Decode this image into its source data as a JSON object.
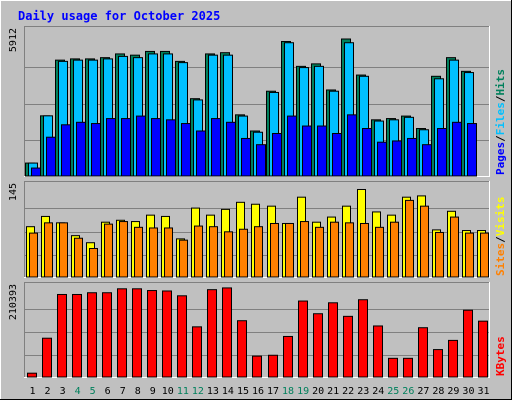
{
  "title": "Daily usage for October 2025",
  "colors": {
    "hits": "#00805c",
    "files": "#00c0ff",
    "pages": "#0000ff",
    "sites": "#ff8000",
    "visits": "#ffff00",
    "kbytes": "#ff0000",
    "background": "#c0c0c0",
    "plot": "#c0c0c0",
    "title": "#0000ff",
    "weekend_day": "#00805c"
  },
  "chart_data": [
    {
      "type": "bar",
      "panel": "hits-files-pages",
      "ymax_label": "5912",
      "ylim": [
        0,
        5912
      ],
      "legend": [
        "Pages",
        "/",
        "Files",
        "/",
        "Hits"
      ],
      "categories": [
        "1",
        "2",
        "3",
        "4",
        "5",
        "6",
        "7",
        "8",
        "9",
        "10",
        "11",
        "12",
        "13",
        "14",
        "15",
        "16",
        "17",
        "18",
        "19",
        "20",
        "21",
        "22",
        "23",
        "24",
        "25",
        "26",
        "27",
        "28",
        "29",
        "30",
        "31"
      ],
      "series": [
        {
          "name": "Hits",
          "values": [
            560,
            2460,
            4700,
            4750,
            4750,
            4800,
            4950,
            4900,
            5050,
            5050,
            4650,
            3150,
            4950,
            5000,
            2500,
            1850,
            3450,
            5450,
            4450,
            4550,
            3500,
            5550,
            4100,
            2300,
            2350,
            2450,
            1950,
            4050,
            4800,
            4250,
            0
          ]
        },
        {
          "name": "Files",
          "values": [
            560,
            2460,
            4650,
            4700,
            4700,
            4750,
            4850,
            4800,
            4950,
            4950,
            4600,
            3100,
            4900,
            4900,
            2450,
            1800,
            3400,
            5400,
            4400,
            4450,
            3450,
            5400,
            4050,
            2250,
            2300,
            2400,
            1900,
            3950,
            4700,
            4200,
            0
          ]
        },
        {
          "name": "Pages",
          "values": [
            360,
            1600,
            2100,
            2200,
            2150,
            2350,
            2350,
            2450,
            2350,
            2300,
            2150,
            1850,
            2350,
            2200,
            1550,
            1300,
            1750,
            2450,
            2050,
            2050,
            1750,
            2500,
            1950,
            1400,
            1450,
            1550,
            1300,
            1950,
            2200,
            2150,
            0
          ]
        }
      ]
    },
    {
      "type": "bar",
      "panel": "sites-visits",
      "ymax_label": "145",
      "ylim": [
        0,
        145
      ],
      "legend": [
        "Sites",
        "/",
        "Visits"
      ],
      "categories": [
        "1",
        "2",
        "3",
        "4",
        "5",
        "6",
        "7",
        "8",
        "9",
        "10",
        "11",
        "12",
        "13",
        "14",
        "15",
        "16",
        "17",
        "18",
        "19",
        "20",
        "21",
        "22",
        "23",
        "24",
        "25",
        "26",
        "27",
        "28",
        "29",
        "30",
        "31"
      ],
      "series": [
        {
          "name": "Visits",
          "values": [
            80,
            96,
            86,
            66,
            55,
            87,
            90,
            88,
            98,
            96,
            61,
            109,
            98,
            107,
            118,
            115,
            112,
            85,
            126,
            87,
            95,
            112,
            138,
            103,
            98,
            126,
            128,
            75,
            104,
            74,
            74
          ]
        },
        {
          "name": "Sites",
          "values": [
            70,
            86,
            86,
            62,
            46,
            84,
            88,
            79,
            78,
            78,
            59,
            81,
            80,
            72,
            76,
            80,
            85,
            85,
            88,
            79,
            87,
            86,
            85,
            79,
            87,
            121,
            112,
            71,
            95,
            70,
            70
          ]
        }
      ]
    },
    {
      "type": "bar",
      "panel": "kbytes",
      "ymax_label": "210393",
      "ylim": [
        0,
        210393
      ],
      "legend": [
        "KBytes"
      ],
      "categories": [
        "1",
        "2",
        "3",
        "4",
        "5",
        "6",
        "7",
        "8",
        "9",
        "10",
        "11",
        "12",
        "13",
        "14",
        "15",
        "16",
        "17",
        "18",
        "19",
        "20",
        "21",
        "22",
        "23",
        "24",
        "25",
        "26",
        "27",
        "28",
        "29",
        "30",
        "31"
      ],
      "series": [
        {
          "name": "KBytes",
          "values": [
            11000,
            91000,
            191000,
            191000,
            195000,
            195000,
            204000,
            204000,
            200000,
            199000,
            188000,
            117000,
            202000,
            206000,
            131000,
            50000,
            52000,
            95000,
            176000,
            147000,
            172000,
            141000,
            179000,
            119000,
            45000,
            45000,
            115000,
            65000,
            86000,
            155000,
            130000
          ]
        }
      ]
    }
  ],
  "weekend_days": [
    "4",
    "5",
    "11",
    "12",
    "18",
    "19",
    "25",
    "26"
  ]
}
